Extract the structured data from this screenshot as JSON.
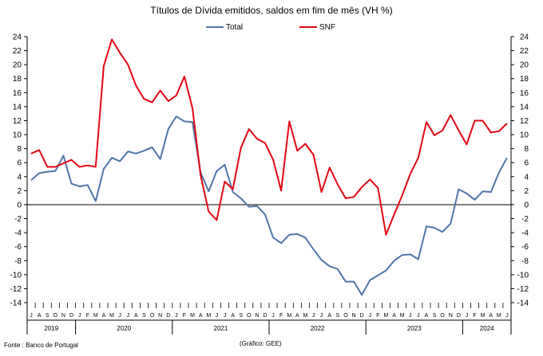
{
  "chart_data": {
    "type": "line",
    "title": "Títulos de Dívida emitidos, saldos em fim de mês (VH %)",
    "xlabel": "",
    "ylabel": "",
    "ylim": [
      -14,
      24
    ],
    "yticks": [
      -14,
      -12,
      -10,
      -8,
      -6,
      -4,
      -2,
      0,
      2,
      4,
      6,
      8,
      10,
      12,
      14,
      16,
      18,
      20,
      22,
      24
    ],
    "grid": false,
    "legend": "top-center",
    "months": [
      "J",
      "A",
      "S",
      "O",
      "N",
      "D",
      "J",
      "F",
      "M",
      "A",
      "M",
      "J",
      "J",
      "A",
      "S",
      "O",
      "N",
      "D",
      "J",
      "F",
      "M",
      "A",
      "M",
      "J",
      "J",
      "A",
      "S",
      "O",
      "N",
      "D",
      "J",
      "F",
      "M",
      "A",
      "M",
      "J",
      "J",
      "A",
      "S",
      "O",
      "N",
      "D",
      "J",
      "F",
      "M",
      "A",
      "M",
      "J",
      "J",
      "A",
      "S",
      "O",
      "N",
      "D",
      "J",
      "F",
      "M",
      "A",
      "M",
      "J"
    ],
    "years": [
      {
        "label": "2019",
        "months": 6
      },
      {
        "label": "2020",
        "months": 12
      },
      {
        "label": "2021",
        "months": 12
      },
      {
        "label": "2022",
        "months": 12
      },
      {
        "label": "2023",
        "months": 12
      },
      {
        "label": "2024",
        "months": 6
      }
    ],
    "series": [
      {
        "name": "Total",
        "color": "#4F75A8",
        "values": [
          3.5,
          4.5,
          4.7,
          4.8,
          7.0,
          3.0,
          2.6,
          2.8,
          0.5,
          5.1,
          6.7,
          6.2,
          7.6,
          7.3,
          7.7,
          8.2,
          6.5,
          10.8,
          12.6,
          11.9,
          11.8,
          4.6,
          1.9,
          4.8,
          5.7,
          1.8,
          0.9,
          -0.3,
          -0.2,
          -1.4,
          -4.7,
          -5.5,
          -4.3,
          -4.2,
          -4.7,
          -6.4,
          -7.9,
          -8.8,
          -9.2,
          -11.0,
          -11.0,
          -12.9,
          -10.8,
          -10.1,
          -9.4,
          -8.0,
          -7.2,
          -7.1,
          -7.8,
          -3.1,
          -3.3,
          -3.9,
          -2.7,
          2.2,
          1.6,
          0.7,
          1.9,
          1.8,
          4.6,
          6.7
        ]
      },
      {
        "name": "SNF",
        "color": "#E30613",
        "values": [
          7.3,
          7.8,
          5.4,
          5.4,
          5.9,
          6.4,
          5.4,
          5.6,
          5.4,
          19.8,
          23.6,
          21.7,
          20.0,
          17.0,
          15.1,
          14.6,
          16.3,
          14.8,
          15.6,
          18.3,
          13.8,
          4.2,
          -1.0,
          -2.2,
          3.3,
          2.2,
          8.1,
          10.8,
          9.4,
          8.8,
          6.4,
          2.0,
          11.9,
          7.7,
          8.7,
          7.1,
          1.8,
          5.3,
          2.9,
          0.9,
          1.1,
          2.5,
          3.6,
          2.4,
          -4.3,
          -1.4,
          1.3,
          4.4,
          6.7,
          11.8,
          9.9,
          10.6,
          12.8,
          10.6,
          8.6,
          12.0,
          12.0,
          10.3,
          10.5,
          11.6
        ]
      }
    ]
  },
  "source_note": "Fonte : Banco de Portugal",
  "credit_note": "(Gráfico: GEE)"
}
